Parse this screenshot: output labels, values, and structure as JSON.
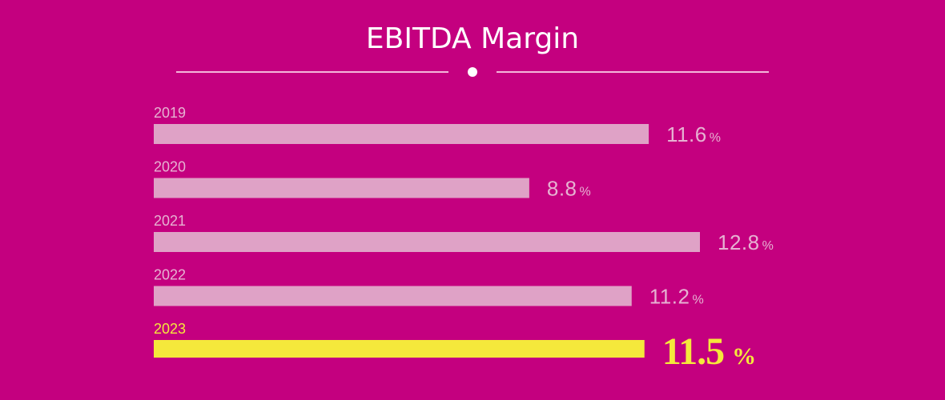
{
  "chart_data": {
    "type": "bar",
    "orientation": "horizontal",
    "title": "EBITDA Margin",
    "categories": [
      "2019",
      "2020",
      "2021",
      "2022",
      "2023"
    ],
    "values": [
      11.6,
      8.8,
      12.8,
      11.2,
      11.5
    ],
    "value_labels": [
      "11.6",
      "8.8",
      "12.8",
      "11.2",
      "11.5"
    ],
    "unit": "%",
    "highlight_index": 4,
    "xlim": [
      0,
      12.8
    ],
    "grid": false,
    "colors": {
      "background": "#c4007f",
      "bar": "#dfa2c6",
      "bar_highlight": "#f5e83b",
      "label": "#e6b2d2",
      "label_highlight": "#f5e83b",
      "title": "#ffffff"
    }
  }
}
